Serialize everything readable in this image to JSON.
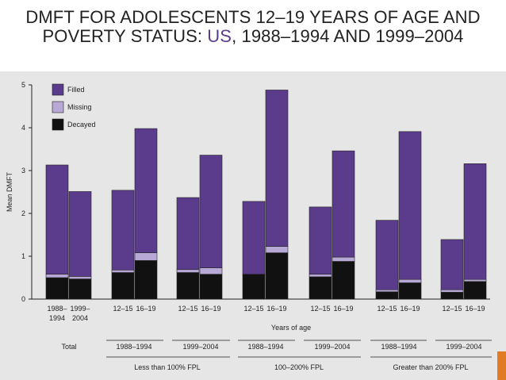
{
  "slide": {
    "title_pre": "DMFT FOR ADOLESCENTS 12–19 YEARS OF AGE AND POVERTY STATUS: ",
    "title_highlight": "US",
    "title_post": ", 1988–1994 AND 1999–2004"
  },
  "colors": {
    "filled": "#5b3c8c",
    "missing": "#b7a8d6",
    "decayed": "#111111",
    "accent": "#e07b24",
    "highlight": "#5b3c8c"
  },
  "chart_data": {
    "type": "bar",
    "stacked": true,
    "ylabel": "Mean DMFT",
    "xlabel": "Years of age",
    "ylim": [
      0,
      5
    ],
    "yticks": [
      0,
      1,
      2,
      3,
      4,
      5
    ],
    "legend": [
      "Filled",
      "Missing",
      "Decayed"
    ],
    "legend_position": "top-left",
    "bars": [
      {
        "label": [
          "1988–",
          "1994"
        ],
        "filled": 2.55,
        "missing": 0.08,
        "decayed": 0.5
      },
      {
        "label": [
          "1999–",
          "2004"
        ],
        "filled": 1.98,
        "missing": 0.06,
        "decayed": 0.47
      },
      {
        "label": [
          "12–15"
        ],
        "filled": 1.86,
        "missing": 0.06,
        "decayed": 0.62
      },
      {
        "label": [
          "16–19"
        ],
        "filled": 2.9,
        "missing": 0.18,
        "decayed": 0.9
      },
      {
        "label": [
          "12–15"
        ],
        "filled": 1.68,
        "missing": 0.07,
        "decayed": 0.62
      },
      {
        "label": [
          "16–19"
        ],
        "filled": 2.63,
        "missing": 0.15,
        "decayed": 0.58
      },
      {
        "label": [
          "12–15"
        ],
        "filled": 1.7,
        "missing": 0.0,
        "decayed": 0.58
      },
      {
        "label": [
          "16–19"
        ],
        "filled": 3.65,
        "missing": 0.15,
        "decayed": 1.08
      },
      {
        "label": [
          "12–15"
        ],
        "filled": 1.57,
        "missing": 0.06,
        "decayed": 0.52
      },
      {
        "label": [
          "16–19"
        ],
        "filled": 2.48,
        "missing": 0.1,
        "decayed": 0.88
      },
      {
        "label": [
          "12–15"
        ],
        "filled": 1.62,
        "missing": 0.05,
        "decayed": 0.17
      },
      {
        "label": [
          "16–19"
        ],
        "filled": 3.45,
        "missing": 0.08,
        "decayed": 0.38
      },
      {
        "label": [
          "12–15"
        ],
        "filled": 1.17,
        "missing": 0.06,
        "decayed": 0.16
      },
      {
        "label": [
          "16–19"
        ],
        "filled": 2.7,
        "missing": 0.05,
        "decayed": 0.41
      }
    ],
    "period_labels": [
      "Total",
      "1988–1994",
      "1999–2004",
      "1988–1994",
      "1999–2004",
      "1988–1994",
      "1999–2004"
    ],
    "poverty_groups": [
      "Less than 100% FPL",
      "100–200% FPL",
      "Greater than 200% FPL"
    ]
  }
}
